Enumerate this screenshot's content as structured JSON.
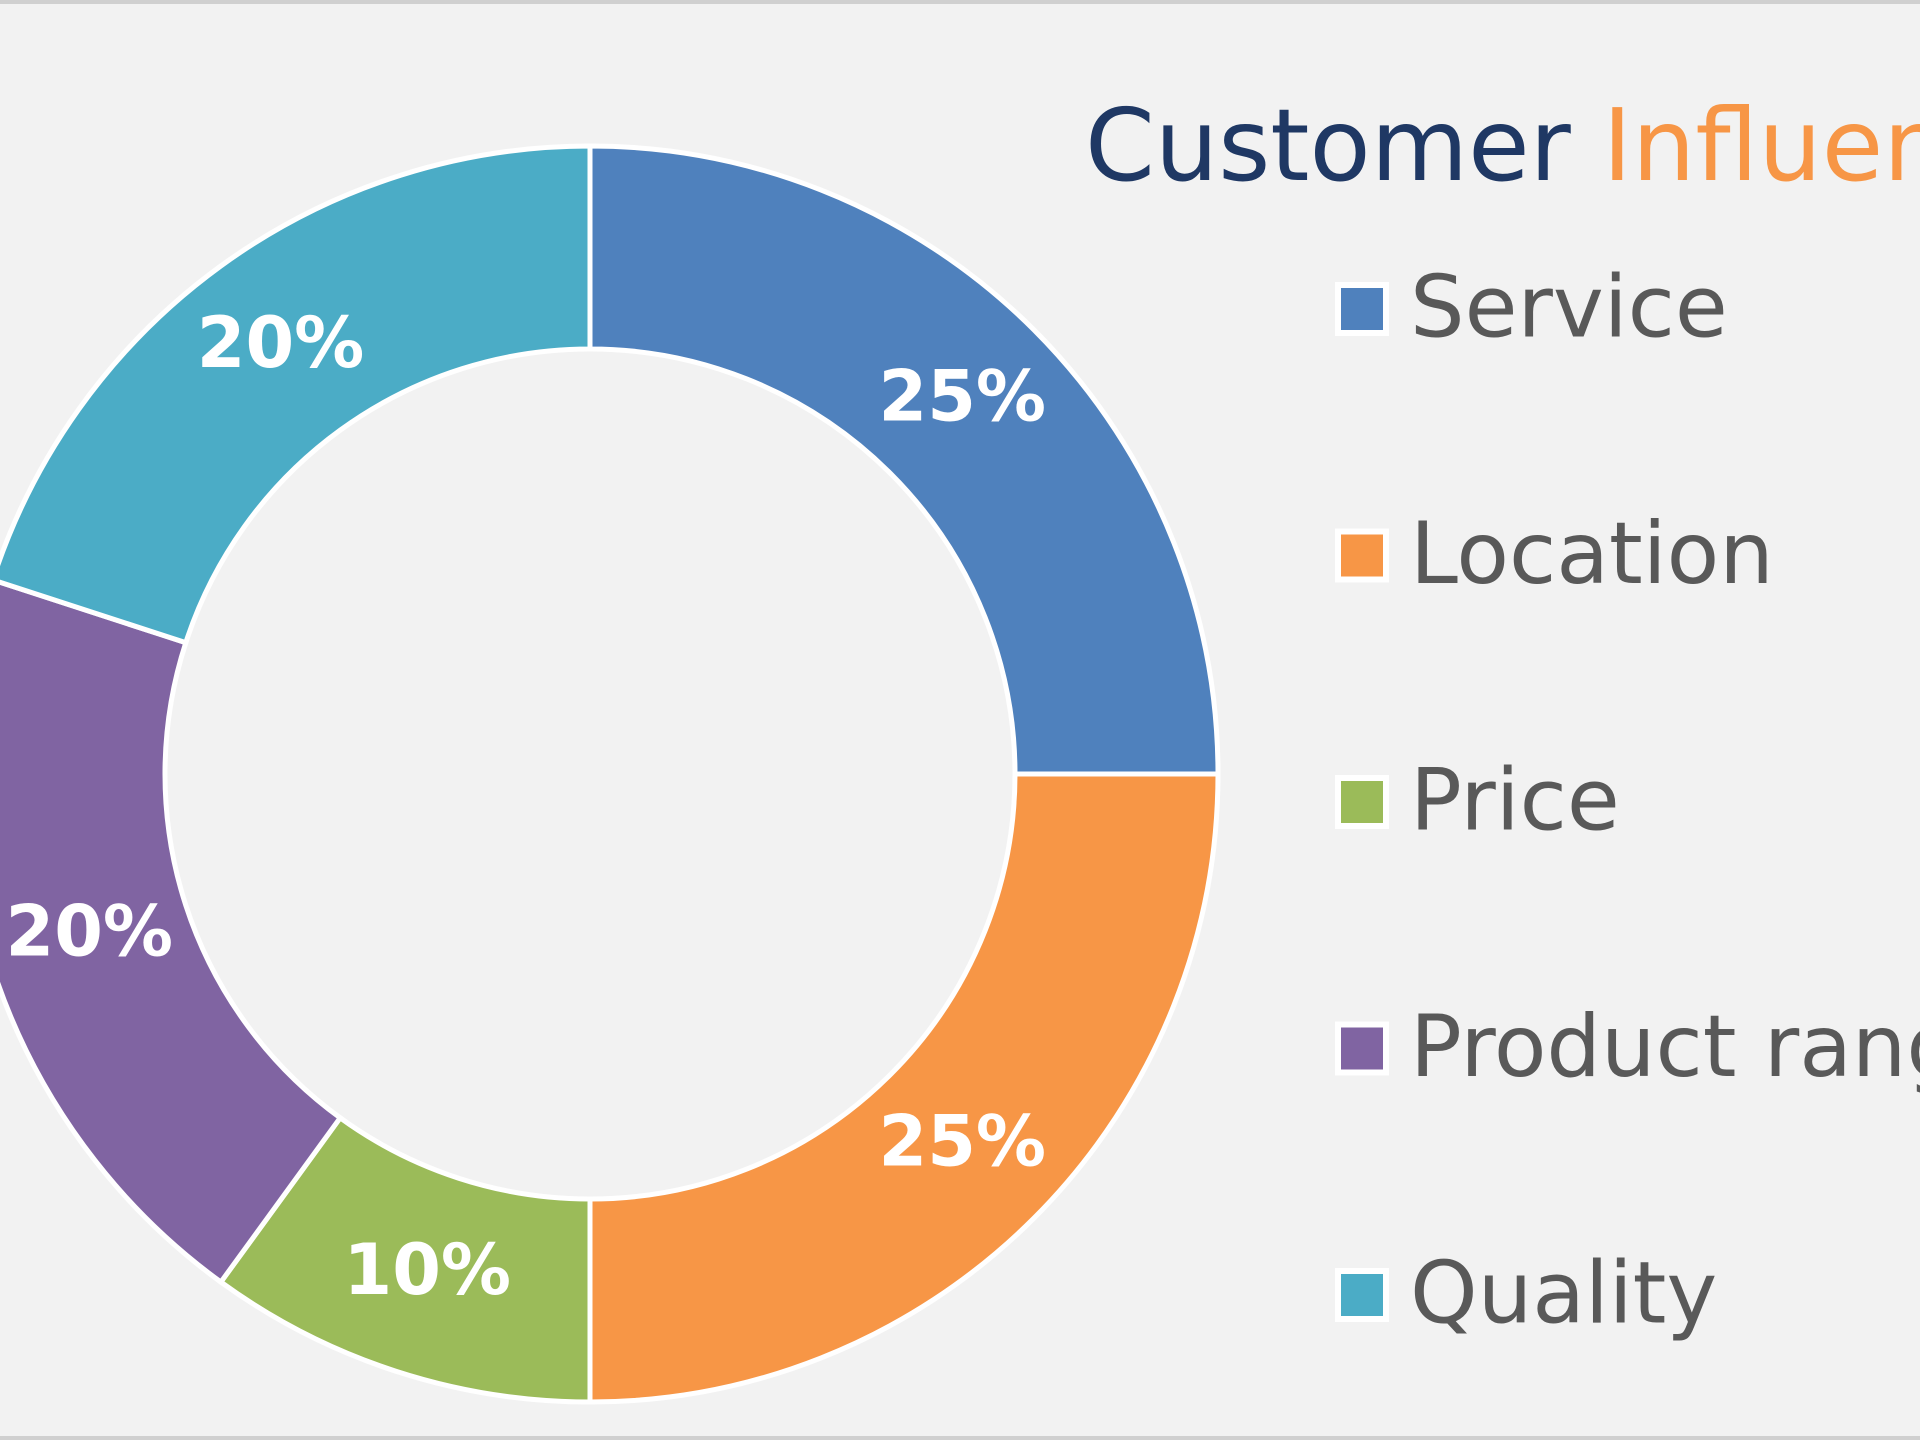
{
  "chart_data": {
    "type": "donut",
    "title": [
      "Customer",
      "Influence"
    ],
    "title_colors": [
      "#1f3864",
      "#f79646"
    ],
    "categories": [
      "Service",
      "Location",
      "Price",
      "Product range",
      "Quality"
    ],
    "values": [
      25,
      25,
      10,
      20,
      20
    ],
    "value_labels": [
      "25%",
      "25%",
      "10%",
      "20%",
      "20%"
    ],
    "colors": [
      "#4f81bd",
      "#f79646",
      "#9bbb59",
      "#8064a2",
      "#4bacc6"
    ],
    "legend": "right"
  }
}
